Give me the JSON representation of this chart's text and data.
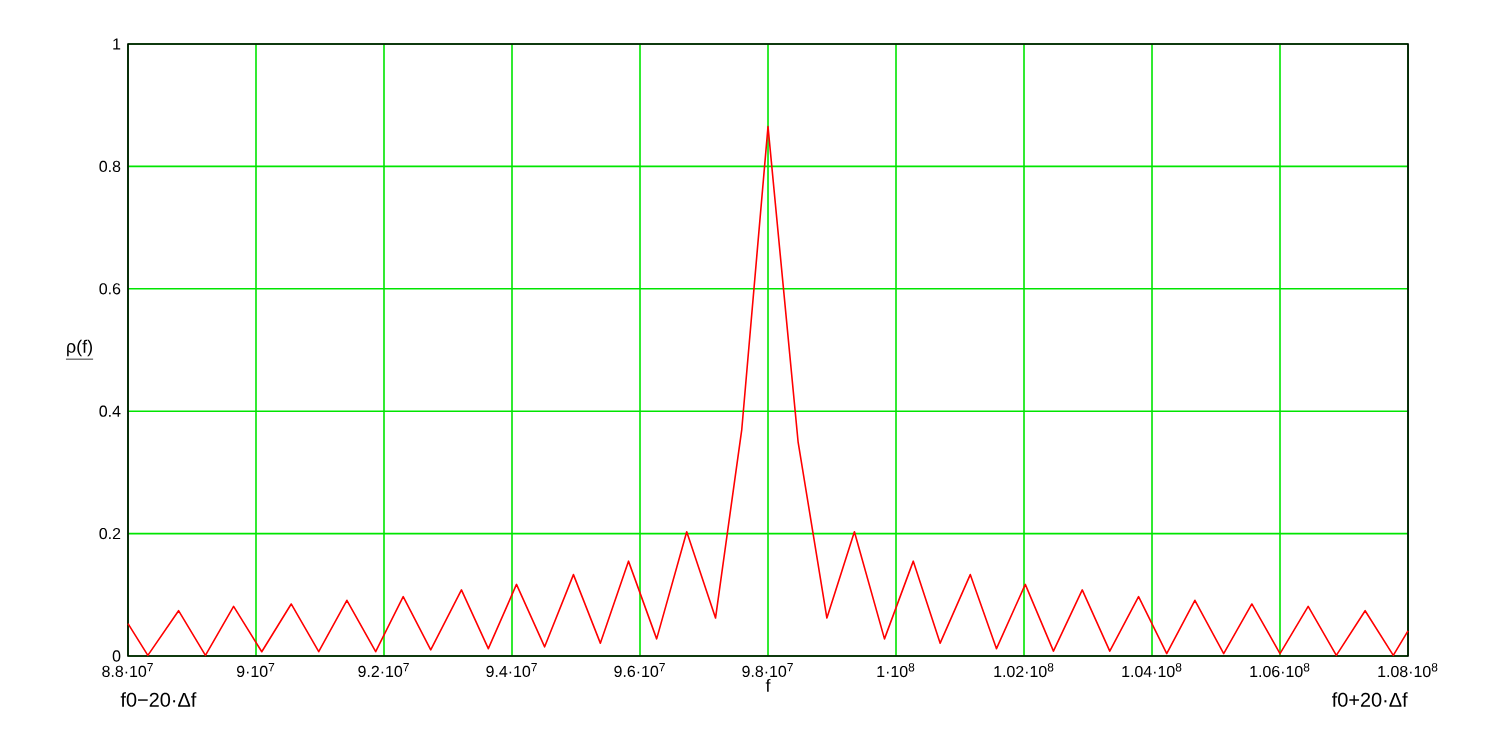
{
  "chart_data": {
    "type": "line",
    "xlabel": "f",
    "ylabel": "ρ(f)",
    "annotations": [
      "f0−20·Δf",
      "f0+20·Δf"
    ],
    "x": [
      88000000,
      88310000,
      88790000,
      89210000,
      89650000,
      90090000,
      90550000,
      90980000,
      91420000,
      91870000,
      92300000,
      92730000,
      93210000,
      93630000,
      94070000,
      94510000,
      94960000,
      95380000,
      95820000,
      96260000,
      96730000,
      97180000,
      97590000,
      98000000,
      98470000,
      98920000,
      99350000,
      99820000,
      100270000,
      100690000,
      101160000,
      101570000,
      102020000,
      102460000,
      102910000,
      103340000,
      103790000,
      104230000,
      104670000,
      105120000,
      105560000,
      106000000,
      106440000,
      106880000,
      107330000,
      107770000,
      108000000
    ],
    "series": [
      {
        "color": "#ff0000",
        "values": [
          0.053,
          0.001,
          0.074,
          0.001,
          0.081,
          0.007,
          0.085,
          0.007,
          0.091,
          0.007,
          0.097,
          0.01,
          0.108,
          0.012,
          0.117,
          0.015,
          0.133,
          0.021,
          0.155,
          0.028,
          0.203,
          0.062,
          0.37,
          0.865,
          0.35,
          0.062,
          0.203,
          0.028,
          0.155,
          0.021,
          0.133,
          0.012,
          0.117,
          0.008,
          0.108,
          0.008,
          0.097,
          0.004,
          0.091,
          0.004,
          0.085,
          0.004,
          0.081,
          0.001,
          0.074,
          0.001,
          0.041
        ]
      }
    ],
    "xlim": [
      88000000,
      108000000
    ],
    "ylim": [
      0,
      1
    ],
    "xticks": [
      {
        "value": 88000000,
        "label": "8.8·10$^{7}$"
      },
      {
        "value": 90000000,
        "label": "9·10$^{7}$"
      },
      {
        "value": 92000000,
        "label": "9.2·10$^{7}$"
      },
      {
        "value": 94000000,
        "label": "9.4·10$^{7}$"
      },
      {
        "value": 96000000,
        "label": "9.6·10$^{7}$"
      },
      {
        "value": 98000000,
        "label": "9.8·10$^{7}$"
      },
      {
        "value": 100000000,
        "label": "1·10$^{8}$"
      },
      {
        "value": 102000000,
        "label": "1.02·10$^{8}$"
      },
      {
        "value": 104000000,
        "label": "1.04·10$^{8}$"
      },
      {
        "value": 106000000,
        "label": "1.06·10$^{8}$"
      },
      {
        "value": 108000000,
        "label": "1.08·10$^{8}$"
      }
    ],
    "yticks": [
      0,
      0.2,
      0.4,
      0.6,
      0.8,
      1
    ],
    "grid": true
  }
}
